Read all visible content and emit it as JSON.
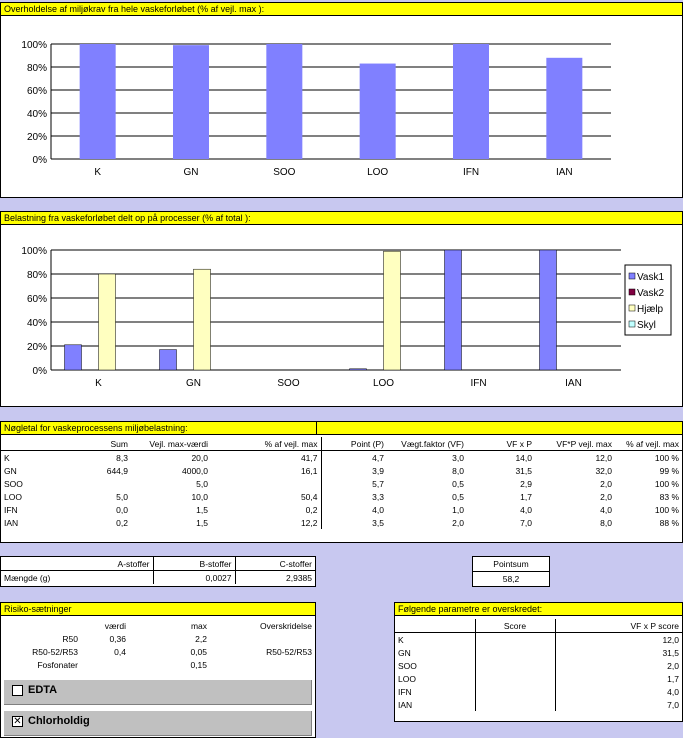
{
  "chart1": {
    "title": "Overholdelse af miljøkrav fra hele vaskeforløbet (% af vejl. max ):",
    "chart_data": {
      "type": "bar",
      "categories": [
        "K",
        "GN",
        "SOO",
        "LOO",
        "IFN",
        "IAN"
      ],
      "values": [
        100,
        99,
        100,
        83,
        100,
        88
      ],
      "ylim": [
        0,
        100
      ],
      "yticks": [
        "0%",
        "20%",
        "40%",
        "60%",
        "80%",
        "100%"
      ],
      "color": "#8080ff"
    }
  },
  "chart2": {
    "title": "Belastning fra vaskeforløbet delt op på processer (% af total ):",
    "chart_data": {
      "type": "bar",
      "categories": [
        "K",
        "GN",
        "SOO",
        "LOO",
        "IFN",
        "IAN"
      ],
      "series": [
        {
          "name": "Vask1",
          "color": "#8080ff",
          "values": [
            21,
            17,
            0,
            1,
            100,
            100
          ]
        },
        {
          "name": "Vask2",
          "color": "#800040",
          "values": [
            0,
            0,
            0,
            0,
            0,
            0
          ]
        },
        {
          "name": "Hjælp",
          "color": "#ffffc0",
          "values": [
            80,
            84,
            0,
            99,
            0,
            0
          ]
        },
        {
          "name": "Skyl",
          "color": "#c0ffff",
          "values": [
            0,
            0,
            0,
            0,
            0,
            0
          ]
        }
      ],
      "ylim": [
        0,
        100
      ],
      "yticks": [
        "0%",
        "20%",
        "40%",
        "60%",
        "80%",
        "100%"
      ],
      "legend": "right"
    }
  },
  "keytable": {
    "title": "Nøgletal for vaskeprocessens miljøbelastning:",
    "headers": [
      "Sum",
      "Vejl. max-værdi",
      "% af vejl. max",
      "Point (P)",
      "Vægt.faktor (VF)",
      "VF x P",
      "VF*P vejl. max",
      "% af vejl. max"
    ],
    "rows": [
      [
        "K",
        "8,3",
        "20,0",
        "41,7",
        "4,7",
        "3,0",
        "14,0",
        "12,0",
        "100 %"
      ],
      [
        "GN",
        "644,9",
        "4000,0",
        "16,1",
        "3,9",
        "8,0",
        "31,5",
        "32,0",
        "99 %"
      ],
      [
        "SOO",
        "",
        "5,0",
        "",
        "5,7",
        "0,5",
        "2,9",
        "2,0",
        "100 %"
      ],
      [
        "LOO",
        "5,0",
        "10,0",
        "50,4",
        "3,3",
        "0,5",
        "1,7",
        "2,0",
        "83 %"
      ],
      [
        "IFN",
        "0,0",
        "1,5",
        "0,2",
        "4,0",
        "1,0",
        "4,0",
        "4,0",
        "100 %"
      ],
      [
        "IAN",
        "0,2",
        "1,5",
        "12,2",
        "3,5",
        "2,0",
        "7,0",
        "8,0",
        "88 %"
      ]
    ]
  },
  "stoffer": {
    "headers": [
      "A-stoffer",
      "B-stoffer",
      "C-stoffer"
    ],
    "row_label": "Mængde (g)",
    "values": [
      "",
      "0,0027",
      "2,9385"
    ]
  },
  "pointsum": {
    "label": "Pointsum",
    "value": "58,2"
  },
  "risiko": {
    "title": "Risiko-sætninger",
    "headers": [
      "værdi",
      "max",
      "Overskridelse"
    ],
    "rows": [
      [
        "R50",
        "0,36",
        "2,2",
        ""
      ],
      [
        "R50-52/R53",
        "0,4",
        "0,05",
        "R50-52/R53"
      ],
      [
        "Fosfonater",
        "",
        "0,15",
        ""
      ]
    ]
  },
  "checkboxes": [
    {
      "label": "EDTA",
      "checked": false,
      "mark": ""
    },
    {
      "label": "Chlorholdig",
      "checked": true,
      "mark": "✕"
    }
  ],
  "exceeded": {
    "title": "Følgende parametre er overskredet:",
    "headers": [
      "Score",
      "VF x P score"
    ],
    "rows": [
      [
        "K",
        "",
        "12,0"
      ],
      [
        "GN",
        "",
        "31,5"
      ],
      [
        "SOO",
        "",
        "2,0"
      ],
      [
        "LOO",
        "",
        "1,7"
      ],
      [
        "IFN",
        "",
        "4,0"
      ],
      [
        "IAN",
        "",
        "7,0"
      ]
    ]
  }
}
